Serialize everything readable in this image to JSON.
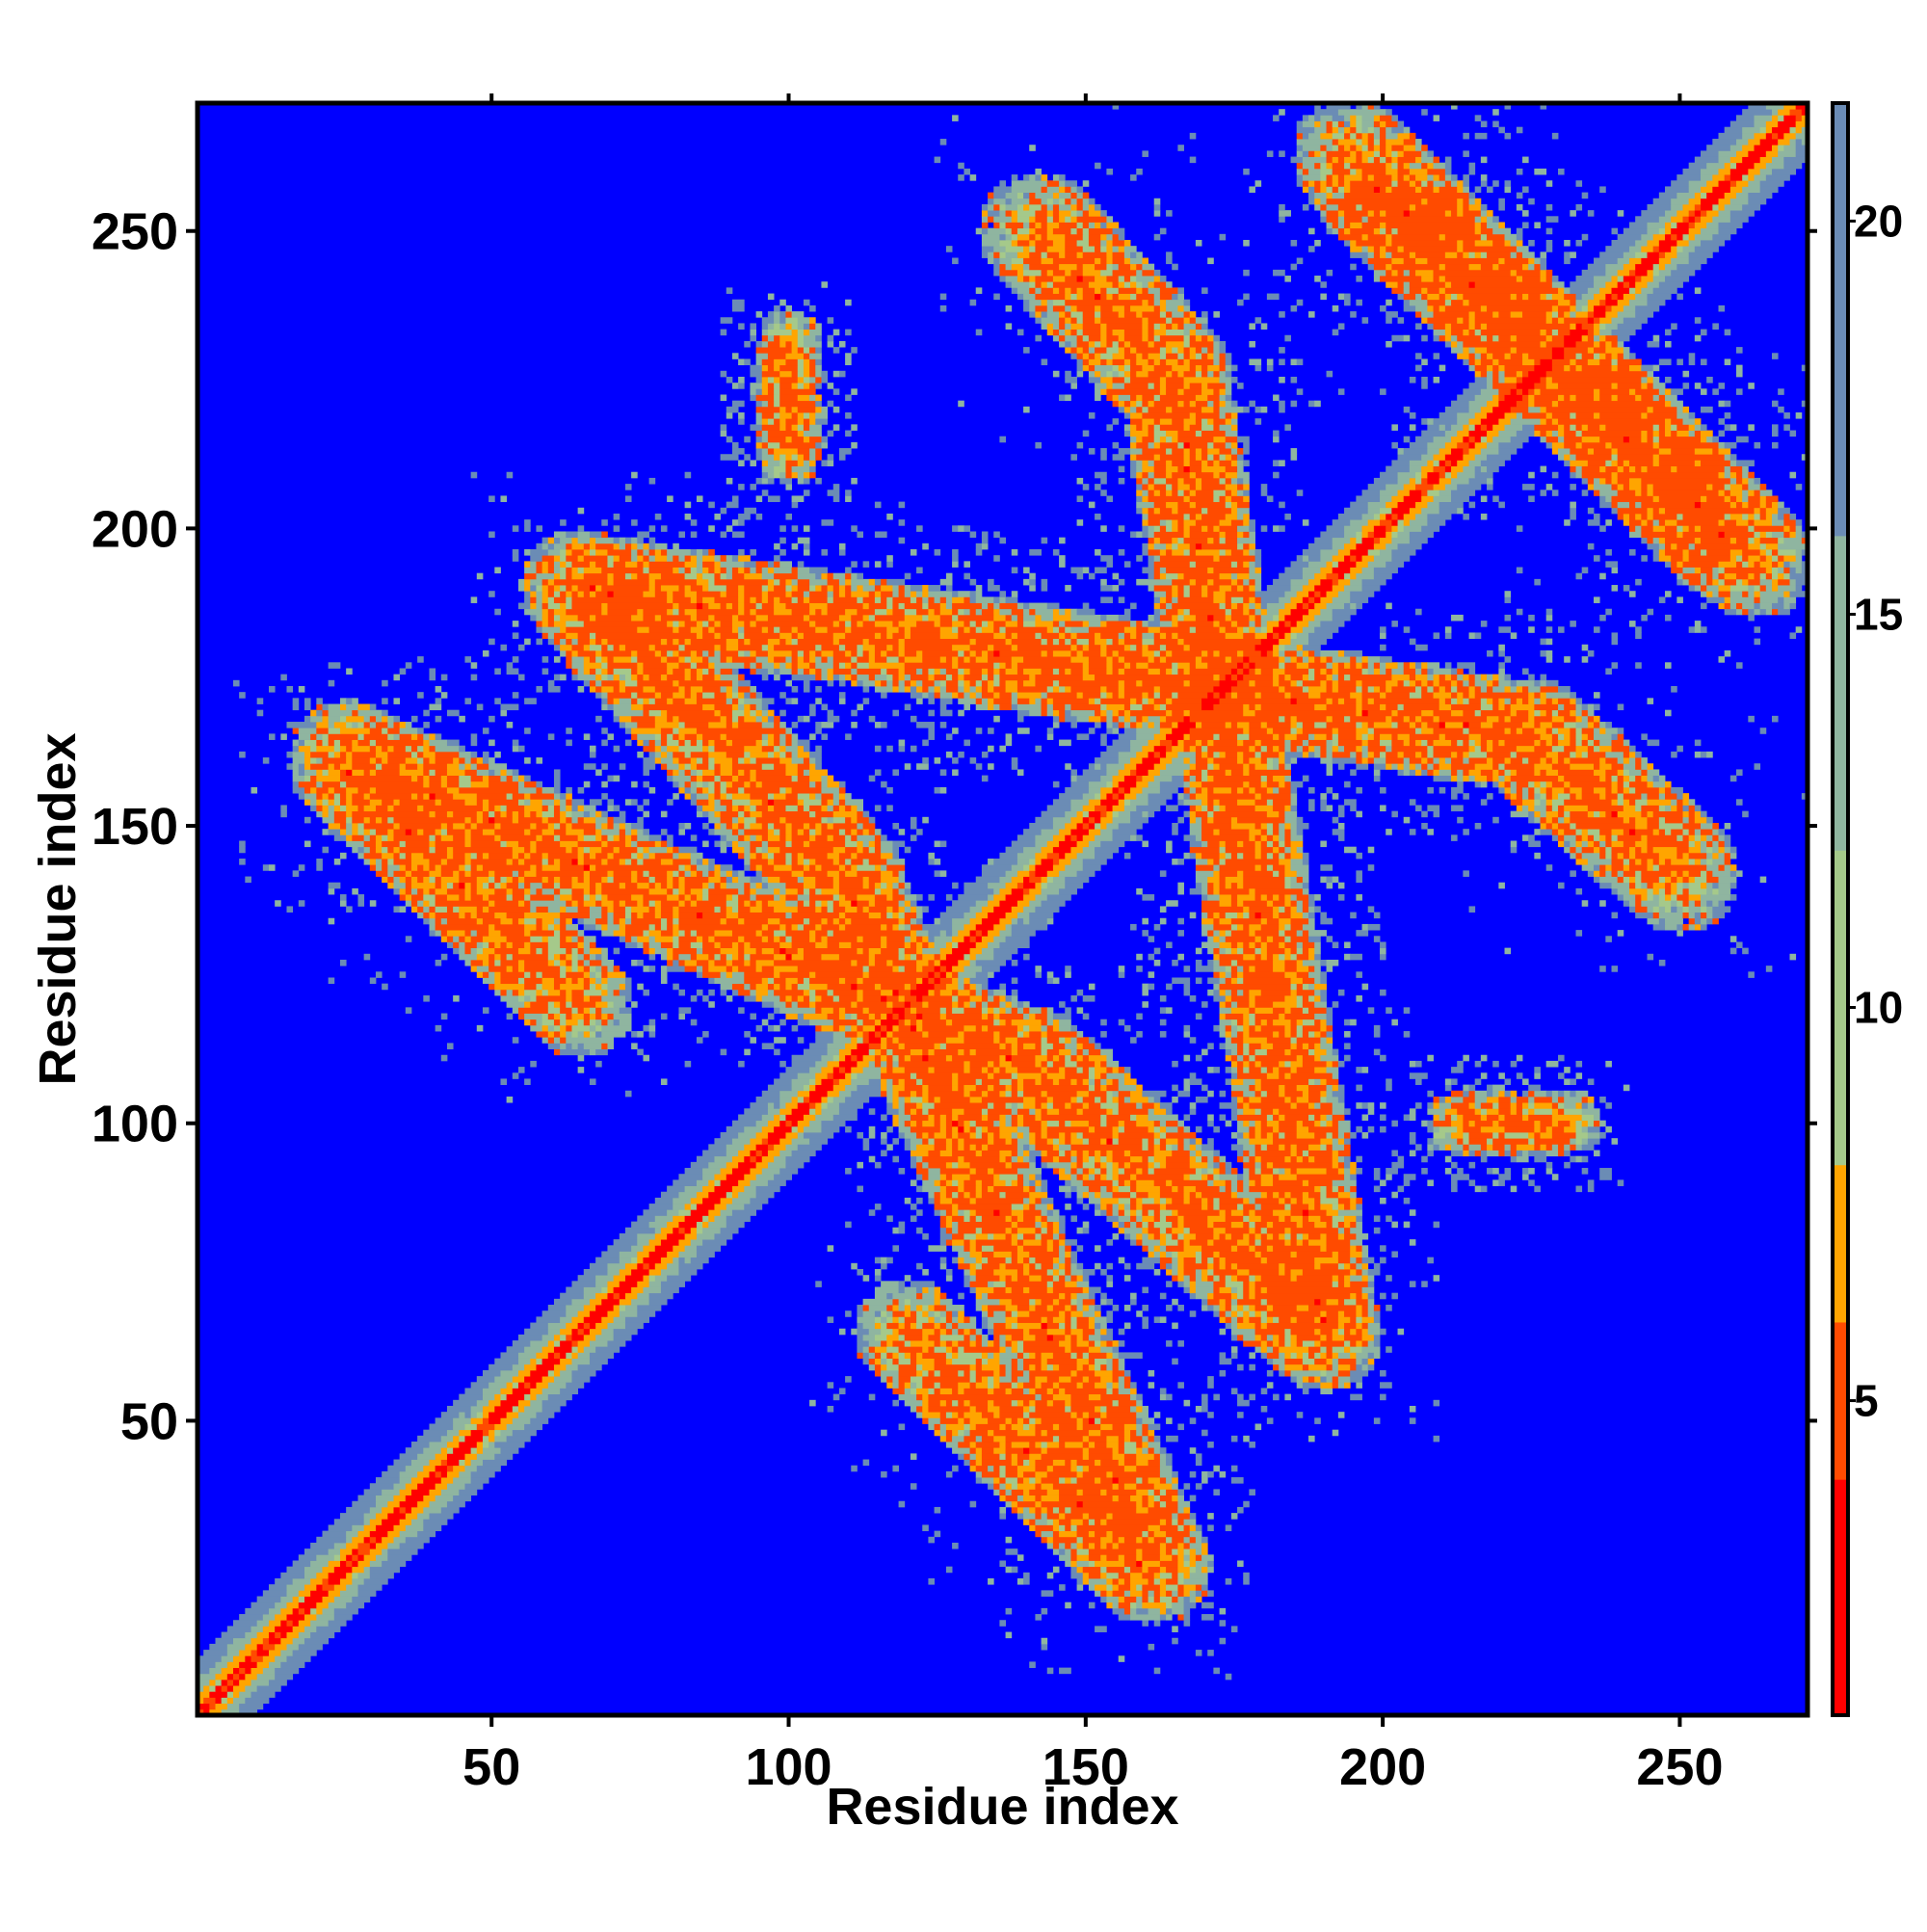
{
  "chart_data": {
    "type": "heatmap",
    "title": "",
    "xlabel": "Residue index",
    "ylabel": "Residue index",
    "xlim": [
      1,
      271
    ],
    "ylim": [
      1,
      271
    ],
    "x_ticks": [
      50,
      100,
      150,
      200,
      250
    ],
    "y_ticks": [
      50,
      100,
      150,
      200,
      250
    ],
    "x_tick_labels": [
      "50",
      "100",
      "150",
      "200",
      "250"
    ],
    "y_tick_labels": [
      "50",
      "100",
      "150",
      "200",
      "250"
    ],
    "colorbar": {
      "ticks": [
        5,
        10,
        15,
        20
      ],
      "tick_labels": [
        "5",
        "10",
        "15",
        "20"
      ],
      "range": [
        1,
        21.5
      ],
      "colors": [
        {
          "max": 4,
          "color": "#ff0000"
        },
        {
          "max": 6,
          "color": "#ff4b00"
        },
        {
          "max": 8,
          "color": "#ffa500"
        },
        {
          "max": 12,
          "color": "#a5c98a"
        },
        {
          "max": 16,
          "color": "#8fb5a0"
        },
        {
          "max": 21.5,
          "color": "#6b8cb5"
        },
        {
          "max": 999,
          "color": "#0000ff"
        }
      ]
    },
    "background_value": 22,
    "background_color": "#0000ff",
    "symmetric": true,
    "diagonal": {
      "core_value": 3,
      "edge_value": 10
    },
    "contact_bands": [
      {
        "i_start": 25,
        "j_start": 160,
        "i_end": 65,
        "j_end": 120,
        "width": 9
      },
      {
        "i_start": 65,
        "j_start": 190,
        "i_end": 110,
        "j_end": 140,
        "width": 10
      },
      {
        "i_start": 110,
        "j_start": 140,
        "i_end": 162,
        "j_end": 25,
        "width": 9
      },
      {
        "i_start": 142,
        "j_start": 250,
        "i_end": 165,
        "j_end": 225,
        "width": 10
      },
      {
        "i_start": 165,
        "j_start": 225,
        "i_end": 190,
        "j_end": 65,
        "width": 9
      },
      {
        "i_start": 198,
        "j_start": 258,
        "i_end": 262,
        "j_end": 195,
        "width": 10
      },
      {
        "i_start": 100,
        "j_start": 228,
        "i_end": 100,
        "j_end": 215,
        "width": 5
      },
      {
        "i_start": 212,
        "j_start": 100,
        "i_end": 232,
        "j_end": 100,
        "width": 5
      }
    ]
  }
}
